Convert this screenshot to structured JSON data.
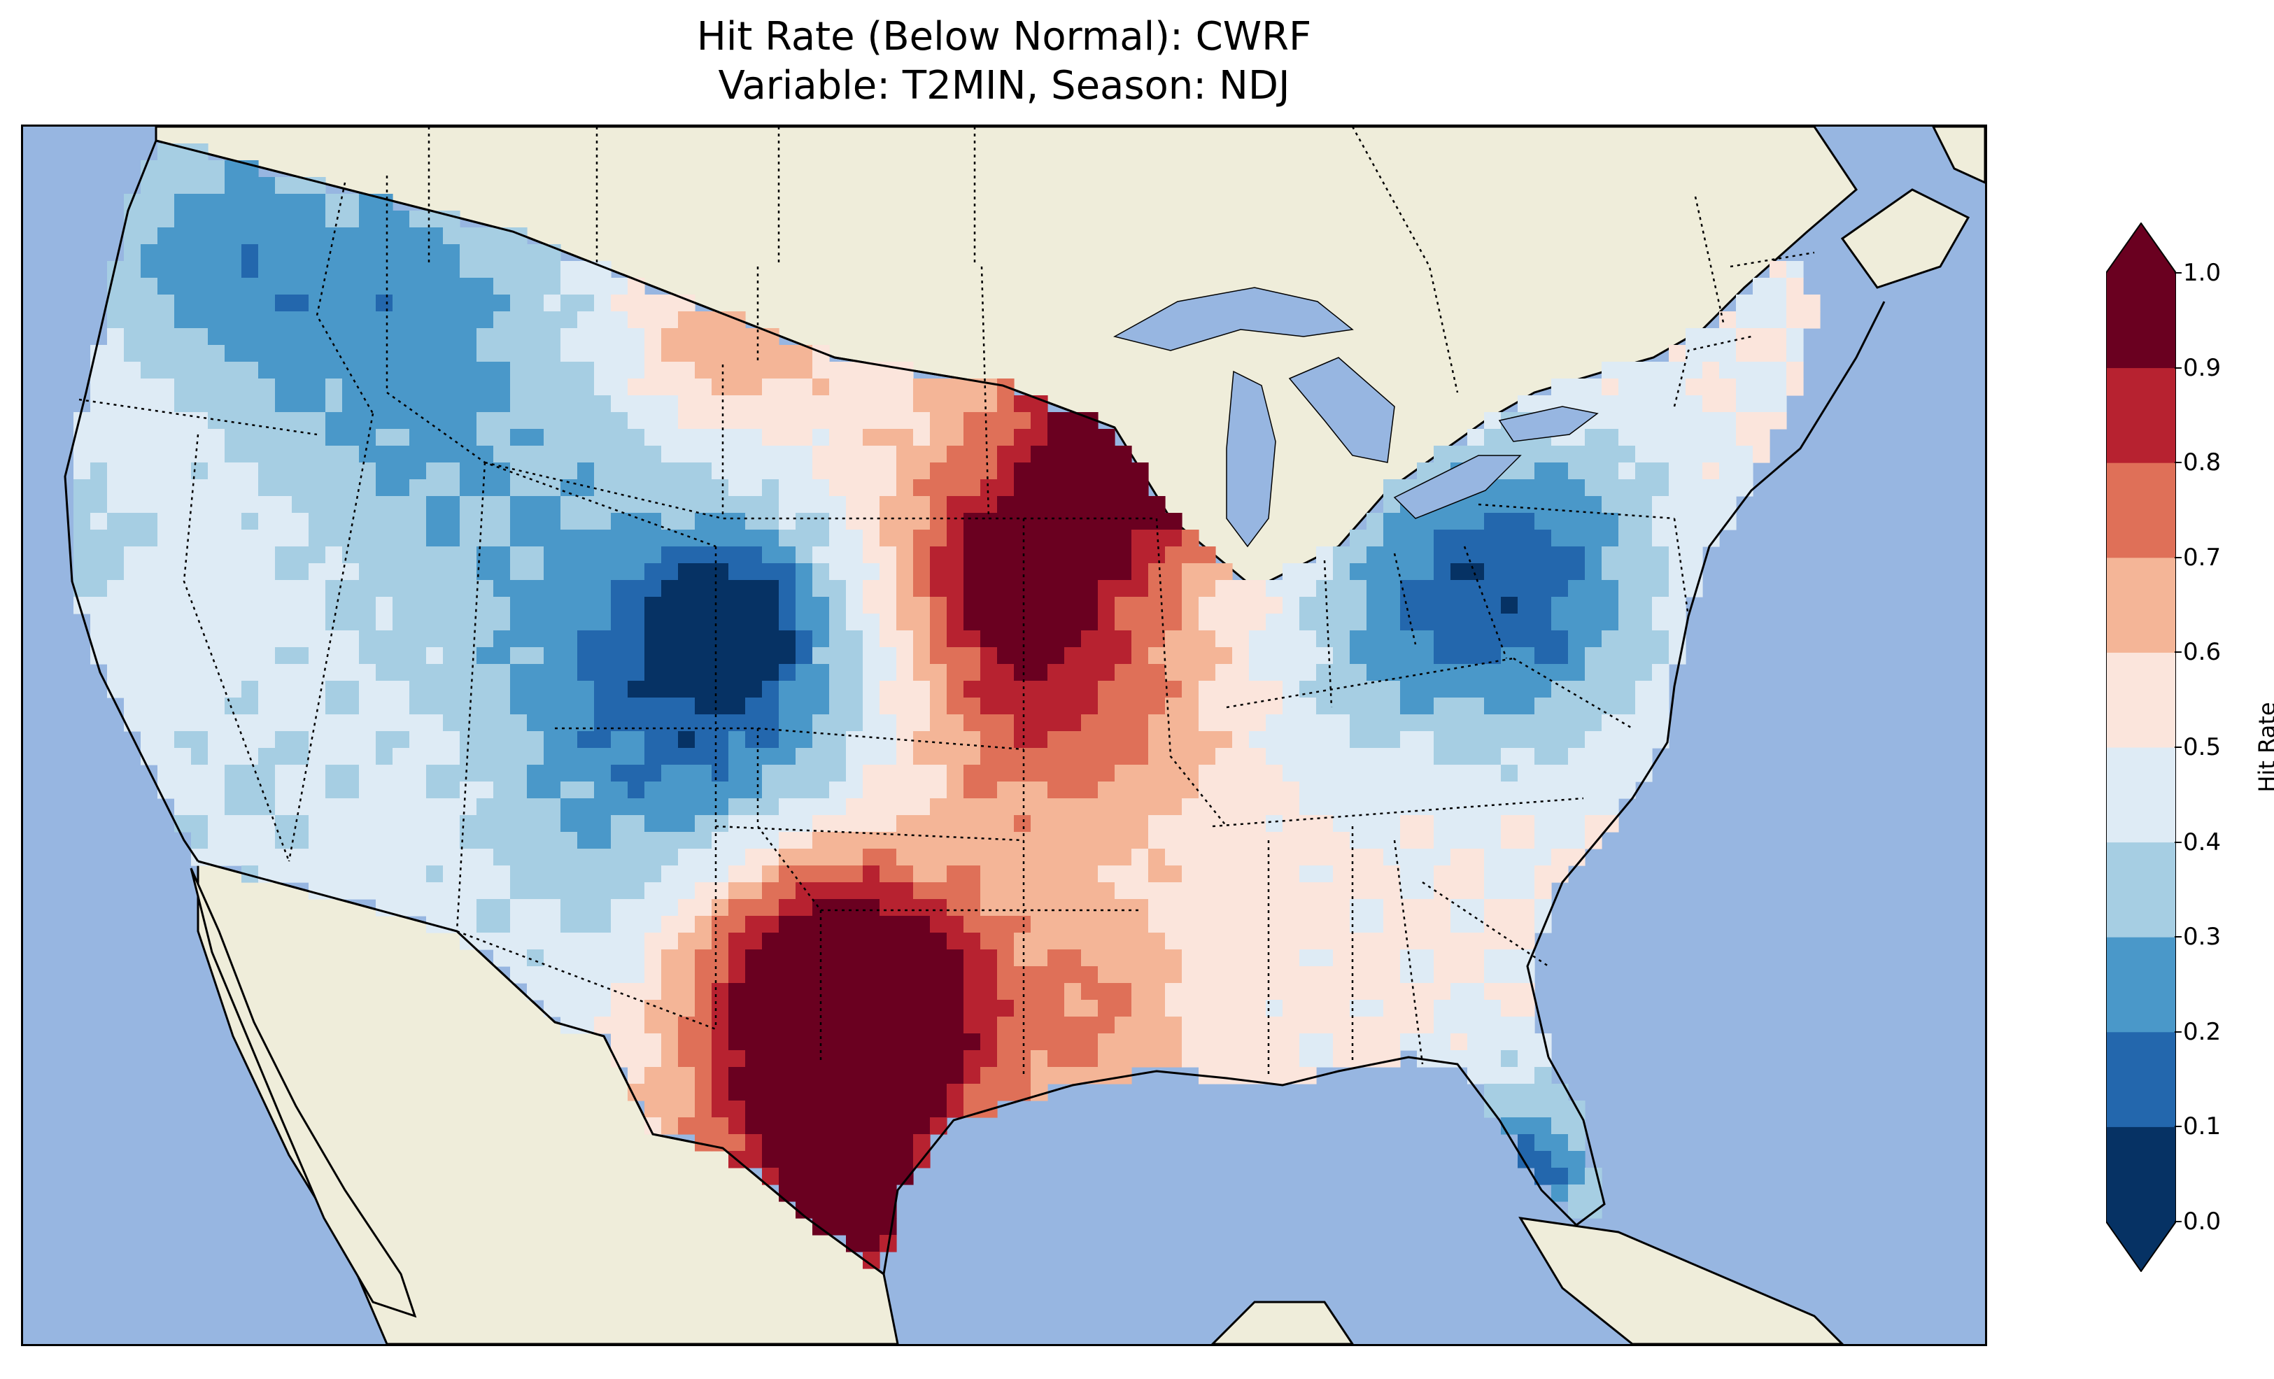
{
  "title": {
    "line1": "Hit Rate (Below Normal): CWRF",
    "line2": "Variable: T2MIN, Season: NDJ"
  },
  "map": {
    "region": "Contiguous United States",
    "ocean_color": "#97b6e1",
    "land_color": "#efedda",
    "lakes_color": "#97b6e1"
  },
  "colorbar": {
    "label": "Hit Rate",
    "ticks": [
      "0.0",
      "0.1",
      "0.2",
      "0.3",
      "0.4",
      "0.5",
      "0.6",
      "0.7",
      "0.8",
      "0.9",
      "1.0"
    ],
    "bins": [
      {
        "range": "0.0-0.1",
        "color": "#063264"
      },
      {
        "range": "0.1-0.2",
        "color": "#2367ad"
      },
      {
        "range": "0.2-0.3",
        "color": "#4a98c9"
      },
      {
        "range": "0.3-0.4",
        "color": "#a6cee3"
      },
      {
        "range": "0.4-0.5",
        "color": "#deebf5"
      },
      {
        "range": "0.5-0.6",
        "color": "#fbe5dc"
      },
      {
        "range": "0.6-0.7",
        "color": "#f4b597"
      },
      {
        "range": "0.7-0.8",
        "color": "#df7058"
      },
      {
        "range": "0.8-0.9",
        "color": "#b72230"
      },
      {
        "range": "0.9-1.0",
        "color": "#6a0020"
      }
    ],
    "extend": "both"
  }
}
